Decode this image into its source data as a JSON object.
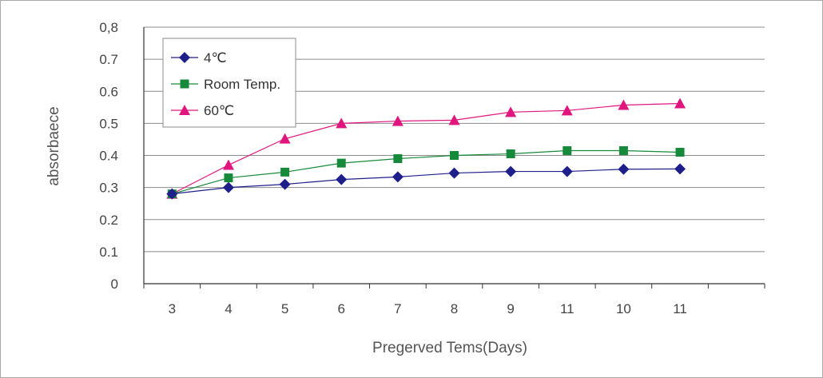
{
  "chart_data": {
    "type": "line",
    "title": "",
    "xlabel": "Pregerved Tems(Days)",
    "ylabel": "absorbaece",
    "categories": [
      "3",
      "4",
      "5",
      "6",
      "7",
      "8",
      "9",
      "11",
      "10",
      "11"
    ],
    "ylim": [
      0,
      0.8
    ],
    "y_ticks": [
      "0",
      "0.1",
      "0.2",
      "0.3",
      "0.4",
      "0.5",
      "0.6",
      "0.7",
      "0,8"
    ],
    "grid": true,
    "legend_position": "top-left",
    "series": [
      {
        "name": "4℃",
        "color": "#1f1f8c",
        "marker": "diamond",
        "values": [
          0.28,
          0.3,
          0.31,
          0.325,
          0.333,
          0.345,
          0.35,
          0.35,
          0.357,
          0.358
        ]
      },
      {
        "name": "Room Temp.",
        "color": "#168a3a",
        "marker": "square",
        "values": [
          0.28,
          0.33,
          0.348,
          0.376,
          0.39,
          0.4,
          0.405,
          0.415,
          0.415,
          0.41
        ]
      },
      {
        "name": "60℃",
        "color": "#e0157e",
        "marker": "triangle",
        "values": [
          0.28,
          0.37,
          0.452,
          0.5,
          0.507,
          0.51,
          0.535,
          0.54,
          0.557,
          0.562
        ]
      }
    ]
  }
}
